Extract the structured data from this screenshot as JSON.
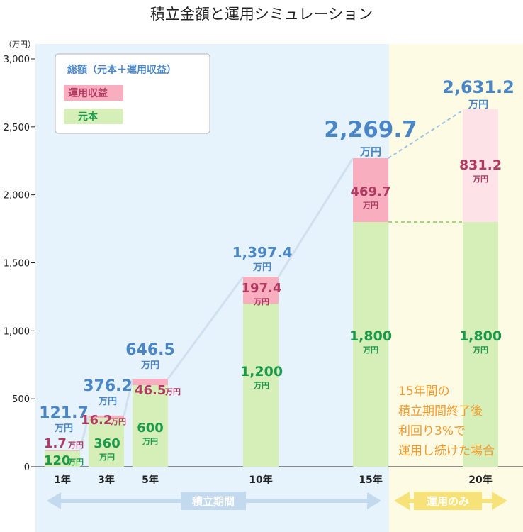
{
  "title": "積立金額と運用シミュレーション",
  "y_unit": "（万円）",
  "man_unit": "万円",
  "legend": {
    "total": "総額（元本＋運用収益）",
    "gain": "運用収益",
    "principal": "元本"
  },
  "periods": {
    "accumulation": "積立期間",
    "investment_only": "運用のみ"
  },
  "note": [
    "15年間の",
    "積立期間終了後",
    "利回り3%で",
    "運用し続けた場合"
  ],
  "colors": {
    "principal": "#d6efb8",
    "gain": "#f9aebf",
    "gain_light": "#fde3e8",
    "total_text": "#4a86c5",
    "gain_text": "#b03a62",
    "principal_text": "#1a9a4a",
    "accumulation_bg": "#e6f3fc",
    "investment_bg": "#fdfbe4",
    "connector": "#d0e0ee",
    "accum_arrow": "#c2d9ee",
    "invest_arrow": "#f7e27a",
    "note_text": "#f39a2b"
  },
  "chart_data": {
    "type": "bar",
    "stacked": true,
    "title": "積立金額と運用シミュレーション",
    "ylabel": "（万円）",
    "ylim": [
      0,
      3000
    ],
    "yticks": [
      0,
      500,
      1000,
      1500,
      2000,
      2500,
      3000
    ],
    "ytick_labels": [
      "0",
      "500",
      "1,000",
      "1,500",
      "2,000",
      "2,500",
      "3,000"
    ],
    "categories": [
      "1年",
      "3年",
      "5年",
      "10年",
      "15年",
      "20年"
    ],
    "x": [
      1,
      3,
      5,
      10,
      15,
      20
    ],
    "series": [
      {
        "name": "元本",
        "values": [
          120,
          360,
          600,
          1200,
          1800,
          1800
        ],
        "labels": [
          "120",
          "360",
          "600",
          "1,200",
          "1,800",
          "1,800"
        ]
      },
      {
        "name": "運用収益",
        "values": [
          1.7,
          16.2,
          46.5,
          197.4,
          469.7,
          831.2
        ],
        "labels": [
          "1.7",
          "16.2",
          "46.5",
          "197.4",
          "469.7",
          "831.2"
        ]
      }
    ],
    "totals": [
      121.7,
      376.2,
      646.5,
      1397.4,
      2269.7,
      2631.2
    ],
    "total_labels": [
      "121.7",
      "376.2",
      "646.5",
      "1,397.4",
      "2,269.7",
      "2,631.2"
    ],
    "legend_position": "top-left",
    "grid": false
  }
}
